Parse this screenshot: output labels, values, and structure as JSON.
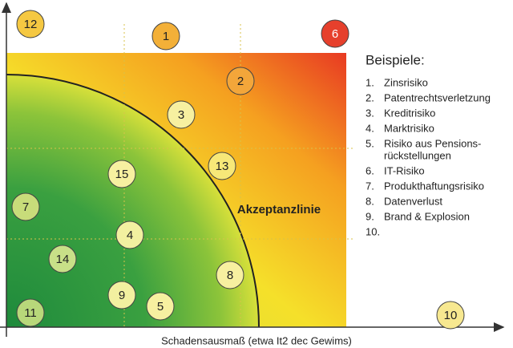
{
  "legend": {
    "title": "Beispiele:",
    "items": [
      {
        "number": "1.",
        "text": "Zinsrisiko"
      },
      {
        "number": "2.",
        "text": "Patentrechtsverletzung"
      },
      {
        "number": "3.",
        "text": "Kreditrisiko"
      },
      {
        "number": "4.",
        "text": "Marktrisiko"
      },
      {
        "number": "5.",
        "text": "Risiko aus Pensions-",
        "text2": "rückstellungen"
      },
      {
        "number": "6.",
        "text": "IT-Risiko"
      },
      {
        "number": "7.",
        "text": "Produkthaftungsrisiko"
      },
      {
        "number": "8.",
        "text": "Datenverlust"
      },
      {
        "number": "9.",
        "text": "Brand & Explosion"
      },
      {
        "number": "10."
      }
    ]
  },
  "curve_label": "Akzeptanzlinie",
  "x_axis_label": "Schadensausmaß (etwa It2 dec Gewims)",
  "nodes": [
    {
      "label": "12"
    },
    {
      "label": "1"
    },
    {
      "label": "6"
    },
    {
      "label": "2"
    },
    {
      "label": "3"
    },
    {
      "label": "15"
    },
    {
      "label": "13"
    },
    {
      "label": "7"
    },
    {
      "label": "4"
    },
    {
      "label": "14"
    },
    {
      "label": "8"
    },
    {
      "label": "9"
    },
    {
      "label": "5"
    },
    {
      "label": "11"
    },
    {
      "label": "10"
    }
  ]
}
